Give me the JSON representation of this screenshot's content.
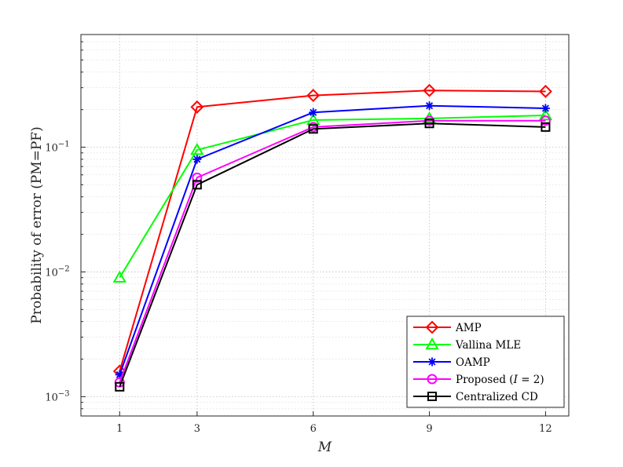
{
  "chart_data": {
    "type": "line",
    "xlabel": "M",
    "ylabel": "Probability of error (PM=PF)",
    "x": [
      1,
      3,
      6,
      9,
      12
    ],
    "x_ticks": [
      "1",
      "3",
      "6",
      "9",
      "12"
    ],
    "xlim": [
      0,
      12.6
    ],
    "ylim": [
      0.0007,
      0.8
    ],
    "y_scale": "log",
    "y_ticks": [
      {
        "value": 0.001,
        "base": "10",
        "exp": "−3"
      },
      {
        "value": 0.01,
        "base": "10",
        "exp": "−2"
      },
      {
        "value": 0.1,
        "base": "10",
        "exp": "−1"
      }
    ],
    "grid": true,
    "legend_position": "bottom-right",
    "series": [
      {
        "name": "AMP",
        "color": "#ff0000",
        "marker": "diamond",
        "values": [
          0.0016,
          0.21,
          0.26,
          0.285,
          0.28
        ]
      },
      {
        "name": "Vallina MLE",
        "color": "#00ff00",
        "marker": "triangle",
        "values": [
          0.009,
          0.095,
          0.165,
          0.17,
          0.18
        ]
      },
      {
        "name": "OAMP",
        "color": "#0000ff",
        "marker": "asterisk",
        "values": [
          0.0015,
          0.08,
          0.19,
          0.215,
          0.205
        ]
      },
      {
        "name": "Proposed (I = 2)",
        "name_prefix": "Proposed (",
        "name_var": "I",
        "name_suffix": " = 2)",
        "color": "#ff00ff",
        "marker": "circle",
        "values": [
          0.0013,
          0.057,
          0.145,
          0.163,
          0.163
        ]
      },
      {
        "name": "Centralized CD",
        "color": "#000000",
        "marker": "square",
        "values": [
          0.0012,
          0.05,
          0.14,
          0.155,
          0.145
        ]
      }
    ]
  }
}
